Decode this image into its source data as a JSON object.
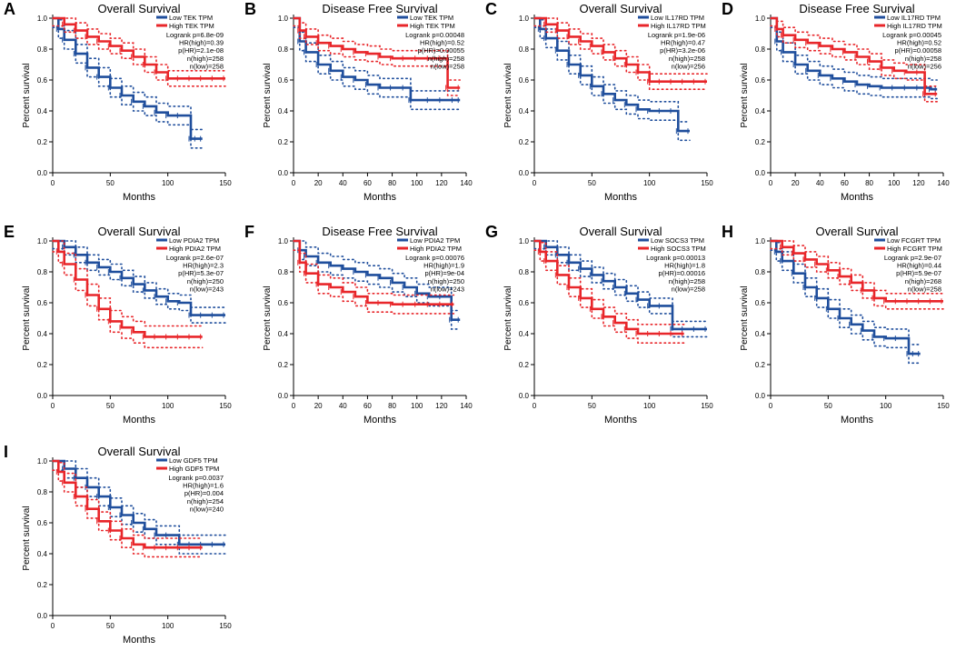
{
  "colors": {
    "low": "#1f4e9c",
    "high": "#e8262a",
    "axis": "#000000"
  },
  "chart_data": [
    {
      "type": "line",
      "panel": "A",
      "title": "Overall Survival",
      "xlabel": "Months",
      "ylabel": "Percent survival",
      "xlim": [
        0,
        150
      ],
      "ylim": [
        0,
        1
      ],
      "xticks": [
        0,
        50,
        100,
        150
      ],
      "yticks": [
        0.0,
        0.2,
        0.4,
        0.6,
        0.8,
        1.0
      ],
      "legend": [
        "Low TEK TPM",
        "High TEK TPM"
      ],
      "stats": [
        "Logrank p=6.8e-09",
        "HR(high)=0.39",
        "p(HR)=2.1e-08",
        "n(high)=258",
        "n(low)=258"
      ],
      "series": [
        {
          "name": "Low TEK TPM",
          "x": [
            0,
            5,
            10,
            20,
            30,
            40,
            50,
            60,
            70,
            80,
            90,
            100,
            110,
            120,
            125,
            130
          ],
          "y": [
            1.0,
            0.93,
            0.86,
            0.77,
            0.68,
            0.62,
            0.55,
            0.5,
            0.46,
            0.43,
            0.39,
            0.37,
            0.37,
            0.22,
            0.22,
            0.22
          ],
          "ci": 0.06
        },
        {
          "name": "High TEK TPM",
          "x": [
            0,
            10,
            20,
            30,
            40,
            50,
            60,
            70,
            80,
            90,
            100,
            110,
            120,
            130,
            140,
            150
          ],
          "y": [
            1.0,
            0.96,
            0.92,
            0.88,
            0.85,
            0.82,
            0.79,
            0.75,
            0.7,
            0.65,
            0.61,
            0.61,
            0.61,
            0.61,
            0.61,
            0.61
          ],
          "ci": 0.05
        }
      ]
    },
    {
      "type": "line",
      "panel": "B",
      "title": "Disease Free Survival",
      "xlabel": "Months",
      "ylabel": "Percent survival",
      "xlim": [
        0,
        140
      ],
      "ylim": [
        0,
        1
      ],
      "xticks": [
        0,
        20,
        40,
        60,
        80,
        100,
        120,
        140
      ],
      "yticks": [
        0.0,
        0.2,
        0.4,
        0.6,
        0.8,
        1.0
      ],
      "legend": [
        "Low TEK TPM",
        "High TEK TPM"
      ],
      "stats": [
        "Logrank p=0.00048",
        "HR(high)=0.52",
        "p(HR)=0.00055",
        "n(high)=258",
        "n(low)=258"
      ],
      "series": [
        {
          "name": "Low TEK TPM",
          "x": [
            0,
            5,
            10,
            20,
            30,
            40,
            50,
            60,
            70,
            80,
            90,
            95,
            110,
            120,
            130,
            135
          ],
          "y": [
            1.0,
            0.85,
            0.78,
            0.7,
            0.66,
            0.62,
            0.6,
            0.57,
            0.55,
            0.55,
            0.55,
            0.47,
            0.47,
            0.47,
            0.47,
            0.47
          ],
          "ci": 0.06
        },
        {
          "name": "High TEK TPM",
          "x": [
            0,
            5,
            10,
            20,
            30,
            40,
            50,
            60,
            70,
            80,
            90,
            100,
            110,
            120,
            125,
            135
          ],
          "y": [
            1.0,
            0.92,
            0.88,
            0.84,
            0.82,
            0.8,
            0.78,
            0.77,
            0.75,
            0.74,
            0.74,
            0.74,
            0.74,
            0.74,
            0.55,
            0.55
          ],
          "ci": 0.05
        }
      ]
    },
    {
      "type": "line",
      "panel": "C",
      "title": "Overall Survival",
      "xlabel": "Months",
      "ylabel": "Percent survival",
      "xlim": [
        0,
        150
      ],
      "ylim": [
        0,
        1
      ],
      "xticks": [
        0,
        50,
        100,
        150
      ],
      "yticks": [
        0.0,
        0.2,
        0.4,
        0.6,
        0.8,
        1.0
      ],
      "legend": [
        "Low IL17RD TPM",
        "High IL17RD TPM"
      ],
      "stats": [
        "Logrank p=1.9e-06",
        "HR(high)=0.47",
        "p(HR)=3.2e-06",
        "n(high)=258",
        "n(low)=256"
      ],
      "series": [
        {
          "name": "Low IL17RD TPM",
          "x": [
            0,
            5,
            10,
            20,
            30,
            40,
            50,
            60,
            70,
            80,
            90,
            100,
            110,
            120,
            125,
            135
          ],
          "y": [
            1.0,
            0.93,
            0.87,
            0.79,
            0.7,
            0.63,
            0.56,
            0.51,
            0.47,
            0.44,
            0.41,
            0.4,
            0.4,
            0.4,
            0.27,
            0.27
          ],
          "ci": 0.06
        },
        {
          "name": "High IL17RD TPM",
          "x": [
            0,
            10,
            20,
            30,
            40,
            50,
            60,
            70,
            80,
            90,
            100,
            110,
            120,
            130,
            140,
            150
          ],
          "y": [
            1.0,
            0.96,
            0.92,
            0.88,
            0.85,
            0.82,
            0.78,
            0.74,
            0.7,
            0.65,
            0.59,
            0.59,
            0.59,
            0.59,
            0.59,
            0.59
          ],
          "ci": 0.05
        }
      ]
    },
    {
      "type": "line",
      "panel": "D",
      "title": "Disease Free Survival",
      "xlabel": "Months",
      "ylabel": "Percent survival",
      "xlim": [
        0,
        140
      ],
      "ylim": [
        0,
        1
      ],
      "xticks": [
        0,
        20,
        40,
        60,
        80,
        100,
        120,
        140
      ],
      "yticks": [
        0.0,
        0.2,
        0.4,
        0.6,
        0.8,
        1.0
      ],
      "legend": [
        "Low IL17RD TPM",
        "High IL17RD TPM"
      ],
      "stats": [
        "Logrank p=0.00045",
        "HR(high)=0.52",
        "p(HR)=0.00058",
        "n(high)=258",
        "n(low)=256"
      ],
      "series": [
        {
          "name": "Low IL17RD TPM",
          "x": [
            0,
            5,
            10,
            20,
            30,
            40,
            50,
            60,
            70,
            80,
            90,
            100,
            110,
            120,
            130,
            135
          ],
          "y": [
            1.0,
            0.85,
            0.78,
            0.7,
            0.66,
            0.63,
            0.61,
            0.59,
            0.57,
            0.56,
            0.55,
            0.55,
            0.55,
            0.55,
            0.54,
            0.54
          ],
          "ci": 0.06
        },
        {
          "name": "High IL17RD TPM",
          "x": [
            0,
            5,
            10,
            20,
            30,
            40,
            50,
            60,
            70,
            80,
            90,
            100,
            110,
            120,
            125,
            135
          ],
          "y": [
            1.0,
            0.93,
            0.89,
            0.86,
            0.84,
            0.82,
            0.8,
            0.78,
            0.75,
            0.72,
            0.68,
            0.66,
            0.65,
            0.65,
            0.51,
            0.51
          ],
          "ci": 0.05
        }
      ]
    },
    {
      "type": "line",
      "panel": "E",
      "title": "Overall Survival",
      "xlabel": "Months",
      "ylabel": "Percent survival",
      "xlim": [
        0,
        150
      ],
      "ylim": [
        0,
        1
      ],
      "xticks": [
        0,
        50,
        100,
        150
      ],
      "yticks": [
        0.0,
        0.2,
        0.4,
        0.6,
        0.8,
        1.0
      ],
      "legend": [
        "Low PDIA2 TPM",
        "High PDIA2 TPM"
      ],
      "stats": [
        "Logrank p=2.6e-07",
        "HR(high)=2.3",
        "p(HR)=5.3e-07",
        "n(high)=250",
        "n(low)=243"
      ],
      "series": [
        {
          "name": "Low PDIA2 TPM",
          "x": [
            0,
            10,
            20,
            30,
            40,
            50,
            60,
            70,
            80,
            90,
            100,
            110,
            120,
            130,
            140,
            150
          ],
          "y": [
            1.0,
            0.96,
            0.91,
            0.86,
            0.83,
            0.8,
            0.76,
            0.72,
            0.68,
            0.64,
            0.61,
            0.6,
            0.52,
            0.52,
            0.52,
            0.52
          ],
          "ci": 0.05
        },
        {
          "name": "High PDIA2 TPM",
          "x": [
            0,
            5,
            10,
            20,
            30,
            40,
            50,
            60,
            70,
            80,
            90,
            100,
            110,
            120,
            130
          ],
          "y": [
            1.0,
            0.93,
            0.85,
            0.75,
            0.65,
            0.56,
            0.48,
            0.44,
            0.41,
            0.38,
            0.38,
            0.38,
            0.38,
            0.38,
            0.38
          ],
          "ci": 0.07
        }
      ]
    },
    {
      "type": "line",
      "panel": "F",
      "title": "Disease Free Survival",
      "xlabel": "Months",
      "ylabel": "Percent survival",
      "xlim": [
        0,
        140
      ],
      "ylim": [
        0,
        1
      ],
      "xticks": [
        0,
        20,
        40,
        60,
        80,
        100,
        120,
        140
      ],
      "yticks": [
        0.0,
        0.2,
        0.4,
        0.6,
        0.8,
        1.0
      ],
      "legend": [
        "Low PDIA2 TPM",
        "High PDIA2 TPM"
      ],
      "stats": [
        "Logrank p=0.00076",
        "HR(high)=1.9",
        "p(HR)=9e-04",
        "n(high)=250",
        "n(low)=243"
      ],
      "series": [
        {
          "name": "Low PDIA2 TPM",
          "x": [
            0,
            5,
            10,
            20,
            30,
            40,
            50,
            60,
            70,
            80,
            90,
            100,
            110,
            120,
            128,
            135
          ],
          "y": [
            1.0,
            0.94,
            0.9,
            0.86,
            0.84,
            0.82,
            0.8,
            0.78,
            0.76,
            0.73,
            0.7,
            0.66,
            0.64,
            0.64,
            0.49,
            0.49
          ],
          "ci": 0.06
        },
        {
          "name": "High PDIA2 TPM",
          "x": [
            0,
            5,
            10,
            20,
            30,
            40,
            50,
            60,
            70,
            80,
            90,
            100,
            110,
            120,
            130
          ],
          "y": [
            1.0,
            0.86,
            0.79,
            0.72,
            0.7,
            0.67,
            0.64,
            0.6,
            0.6,
            0.59,
            0.59,
            0.59,
            0.59,
            0.59,
            0.59
          ],
          "ci": 0.06
        }
      ]
    },
    {
      "type": "line",
      "panel": "G",
      "title": "Overall Survival",
      "xlabel": "Months",
      "ylabel": "Percent survival",
      "xlim": [
        0,
        150
      ],
      "ylim": [
        0,
        1
      ],
      "xticks": [
        0,
        50,
        100,
        150
      ],
      "yticks": [
        0.0,
        0.2,
        0.4,
        0.6,
        0.8,
        1.0
      ],
      "legend": [
        "Low SOCS3 TPM",
        "High SOCS3 TPM"
      ],
      "stats": [
        "Logrank p=0.00013",
        "HR(high)=1.8",
        "p(HR)=0.00016",
        "n(high)=258",
        "n(low)=258"
      ],
      "series": [
        {
          "name": "Low SOCS3 TPM",
          "x": [
            0,
            10,
            20,
            30,
            40,
            50,
            60,
            70,
            80,
            90,
            100,
            110,
            120,
            130,
            140,
            150
          ],
          "y": [
            1.0,
            0.96,
            0.91,
            0.86,
            0.82,
            0.78,
            0.74,
            0.7,
            0.66,
            0.62,
            0.58,
            0.58,
            0.43,
            0.43,
            0.43,
            0.43
          ],
          "ci": 0.05
        },
        {
          "name": "High SOCS3 TPM",
          "x": [
            0,
            5,
            10,
            20,
            30,
            40,
            50,
            60,
            70,
            80,
            90,
            100,
            110,
            120,
            130
          ],
          "y": [
            1.0,
            0.93,
            0.87,
            0.78,
            0.7,
            0.63,
            0.56,
            0.51,
            0.47,
            0.43,
            0.4,
            0.4,
            0.4,
            0.4,
            0.4
          ],
          "ci": 0.06
        }
      ]
    },
    {
      "type": "line",
      "panel": "H",
      "title": "Overall Survival",
      "xlabel": "Months",
      "ylabel": "Percent survival",
      "xlim": [
        0,
        150
      ],
      "ylim": [
        0,
        1
      ],
      "xticks": [
        0,
        50,
        100,
        150
      ],
      "yticks": [
        0.0,
        0.2,
        0.4,
        0.6,
        0.8,
        1.0
      ],
      "legend": [
        "Low FCGRT TPM",
        "High FCGRT TPM"
      ],
      "stats": [
        "Logrank p=2.9e-07",
        "HR(high)=0.44",
        "p(HR)=5.9e-07",
        "n(high)=268",
        "n(low)=258"
      ],
      "series": [
        {
          "name": "Low FCGRT TPM",
          "x": [
            0,
            5,
            10,
            20,
            30,
            40,
            50,
            60,
            70,
            80,
            90,
            100,
            110,
            120,
            125,
            130
          ],
          "y": [
            1.0,
            0.93,
            0.87,
            0.79,
            0.7,
            0.63,
            0.56,
            0.5,
            0.46,
            0.42,
            0.38,
            0.37,
            0.37,
            0.27,
            0.27,
            0.27
          ],
          "ci": 0.06
        },
        {
          "name": "High FCGRT TPM",
          "x": [
            0,
            10,
            20,
            30,
            40,
            50,
            60,
            70,
            80,
            90,
            100,
            110,
            120,
            130,
            140,
            150
          ],
          "y": [
            1.0,
            0.96,
            0.92,
            0.88,
            0.85,
            0.81,
            0.77,
            0.73,
            0.68,
            0.63,
            0.61,
            0.61,
            0.61,
            0.61,
            0.61,
            0.61
          ],
          "ci": 0.05
        }
      ]
    },
    {
      "type": "line",
      "panel": "I",
      "title": "Overall Survival",
      "xlabel": "Months",
      "ylabel": "Percent survival",
      "xlim": [
        0,
        150
      ],
      "ylim": [
        0,
        1
      ],
      "xticks": [
        0,
        50,
        100,
        150
      ],
      "yticks": [
        0.0,
        0.2,
        0.4,
        0.6,
        0.8,
        1.0
      ],
      "legend": [
        "Low GDF5 TPM",
        "High GDF5 TPM"
      ],
      "stats": [
        "Logrank p=0.0037",
        "HR(high)=1.6",
        "p(HR)=0.004",
        "n(high)=254",
        "n(low)=240"
      ],
      "series": [
        {
          "name": "Low GDF5 TPM",
          "x": [
            0,
            10,
            20,
            30,
            40,
            50,
            60,
            70,
            80,
            90,
            100,
            110,
            120,
            130,
            140,
            150
          ],
          "y": [
            1.0,
            0.95,
            0.89,
            0.83,
            0.77,
            0.7,
            0.65,
            0.6,
            0.56,
            0.52,
            0.52,
            0.46,
            0.46,
            0.46,
            0.46,
            0.46
          ],
          "ci": 0.06
        },
        {
          "name": "High GDF5 TPM",
          "x": [
            0,
            5,
            10,
            20,
            30,
            40,
            50,
            60,
            70,
            80,
            90,
            100,
            110,
            120,
            130
          ],
          "y": [
            1.0,
            0.93,
            0.86,
            0.77,
            0.69,
            0.61,
            0.55,
            0.5,
            0.46,
            0.44,
            0.44,
            0.44,
            0.44,
            0.44,
            0.44
          ],
          "ci": 0.06
        }
      ]
    }
  ]
}
